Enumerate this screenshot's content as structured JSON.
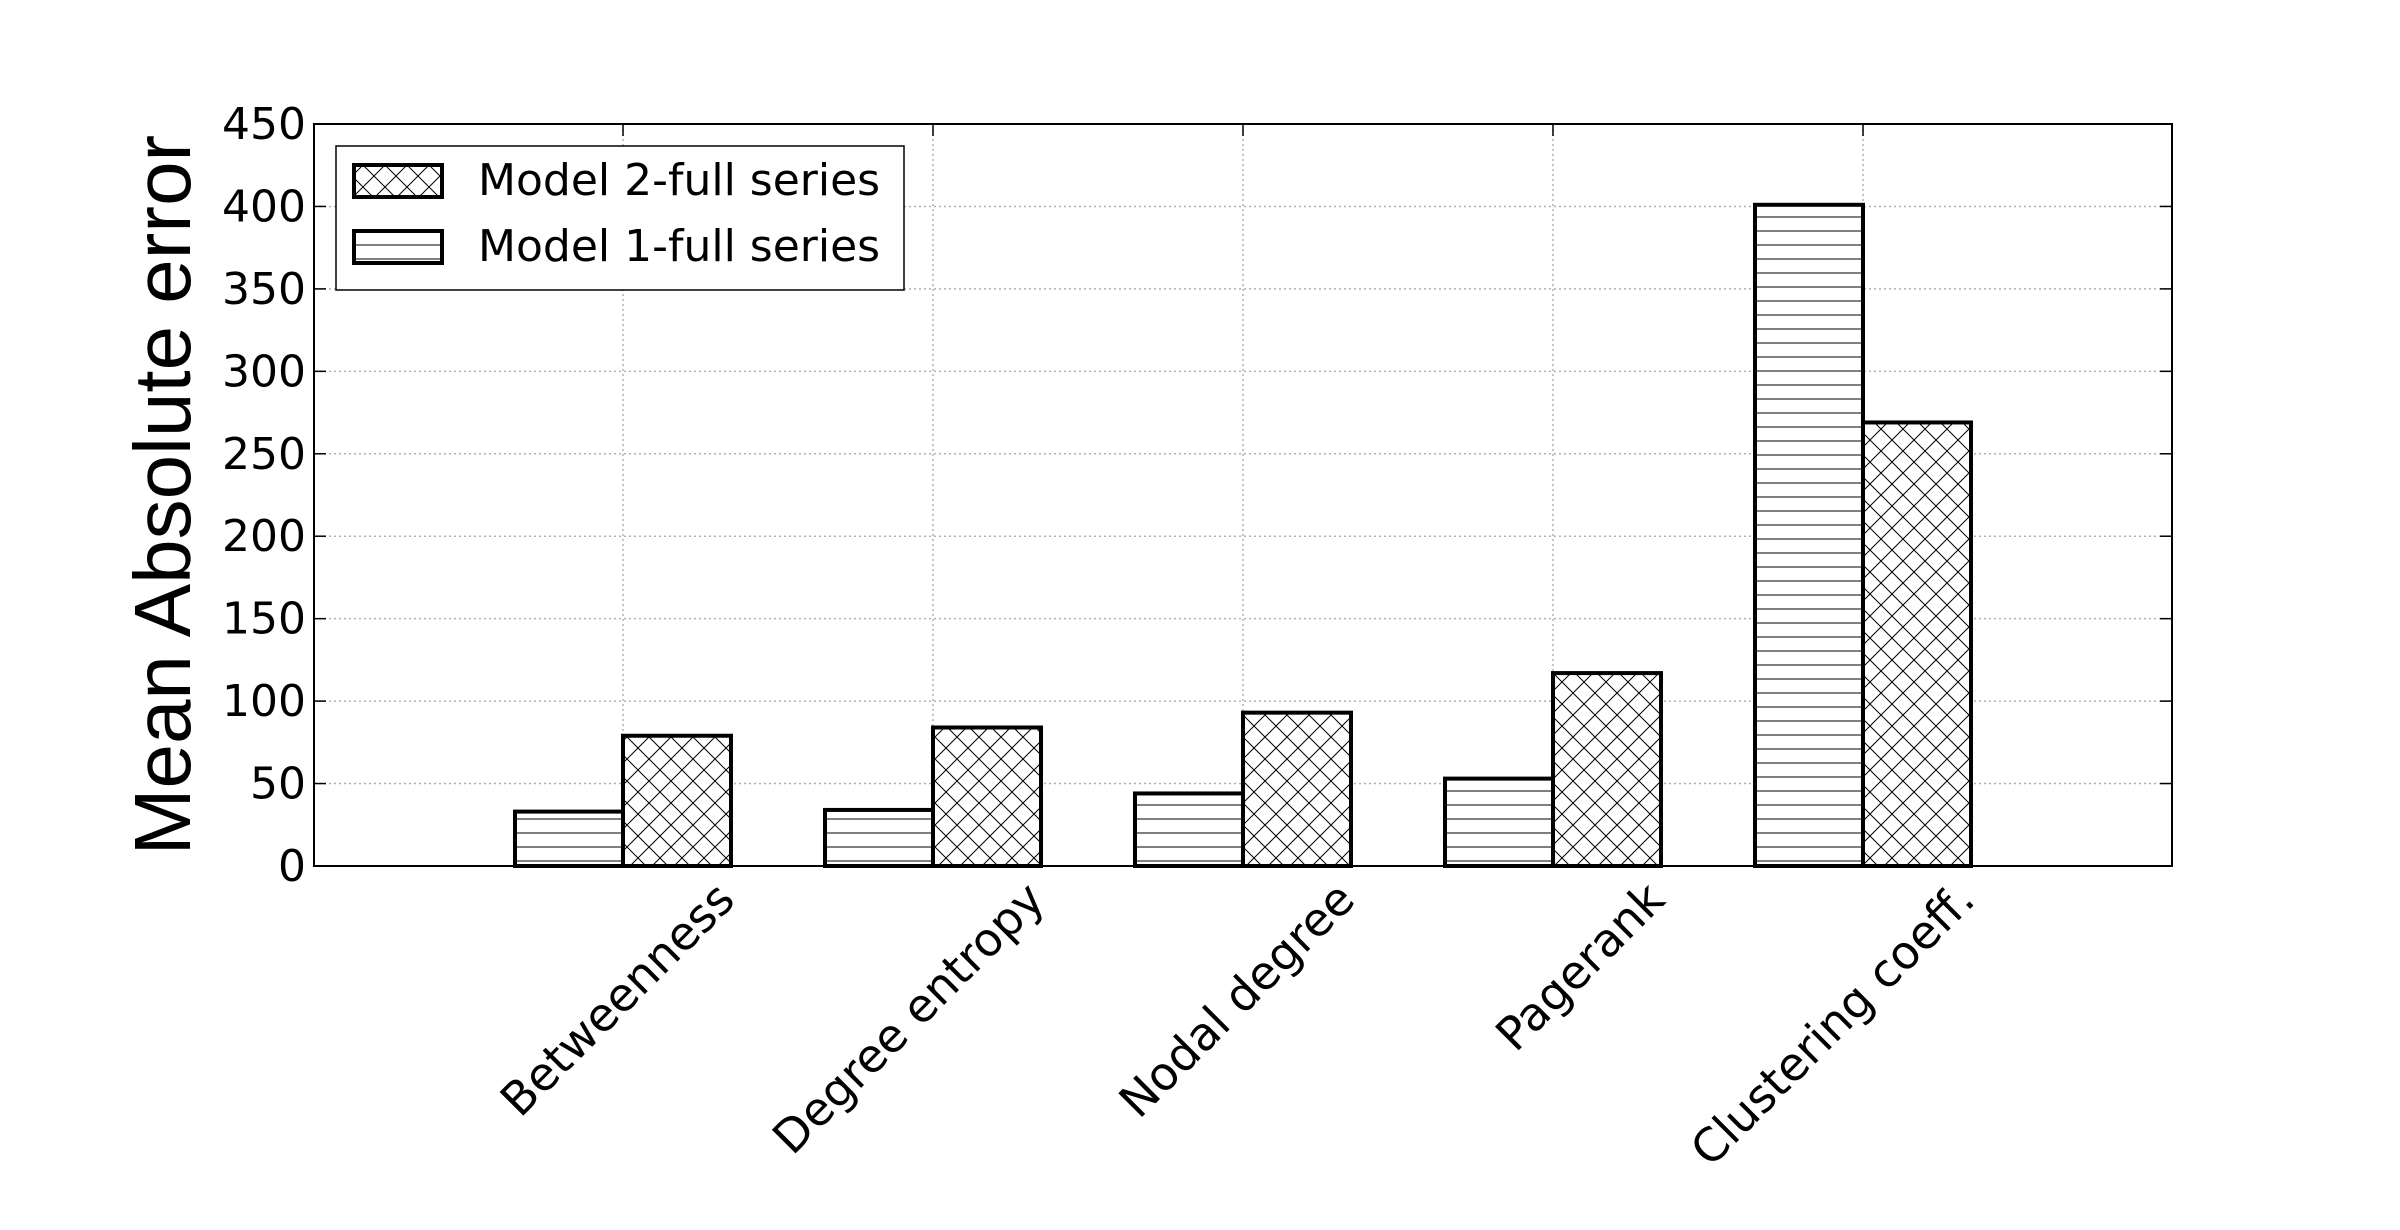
{
  "chart_data": {
    "type": "bar",
    "title": "",
    "xlabel": "",
    "ylabel": "Mean Absolute error",
    "ylim": [
      0,
      450
    ],
    "yticks": [
      0,
      50,
      100,
      150,
      200,
      250,
      300,
      350,
      400,
      450
    ],
    "grid": true,
    "legend_position": "top-left",
    "categories": [
      "Betweenness",
      "Degree entropy",
      "Nodal degree",
      "Pagerank",
      "Clustering coeff."
    ],
    "series": [
      {
        "name": "Model 1-full series",
        "hatch": "horizontal",
        "values": [
          33,
          34,
          44,
          53,
          401
        ]
      },
      {
        "name": "Model 2-full series",
        "hatch": "crosshatch",
        "values": [
          79,
          84,
          93,
          117,
          269
        ]
      }
    ],
    "legend_order": [
      1,
      0
    ],
    "colors": {
      "fill": "#ffffff",
      "edge": "#000000",
      "grid": "#b0b0b0"
    }
  }
}
